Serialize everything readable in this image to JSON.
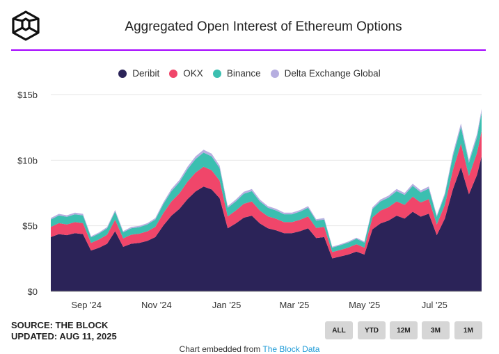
{
  "header": {
    "title": "Aggregated Open Interest of Ethereum Options",
    "logo": "The Block"
  },
  "footer": {
    "source": "SOURCE: THE BLOCK",
    "updated": "UPDATED: AUG 11, 2025",
    "embed_prefix": "Chart embedded from ",
    "embed_link": "The Block Data"
  },
  "range_buttons": [
    "ALL",
    "YTD",
    "12M",
    "3M",
    "1M"
  ],
  "chart_data": {
    "type": "area",
    "stacked": true,
    "title": "Aggregated Open Interest of Ethereum Options",
    "legend_position": "top",
    "grid": true,
    "ylim": [
      0,
      15
    ],
    "yticks": [
      {
        "v": 0,
        "label": "$0"
      },
      {
        "v": 5,
        "label": "$5b"
      },
      {
        "v": 10,
        "label": "$10b"
      },
      {
        "v": 15,
        "label": "$15b"
      }
    ],
    "xticks": [
      {
        "date": "2024-09-01",
        "label": "Sep '24"
      },
      {
        "date": "2024-11-01",
        "label": "Nov '24"
      },
      {
        "date": "2025-01-01",
        "label": "Jan '25"
      },
      {
        "date": "2025-03-01",
        "label": "Mar '25"
      },
      {
        "date": "2025-05-01",
        "label": "May '25"
      },
      {
        "date": "2025-07-01",
        "label": "Jul '25"
      }
    ],
    "x": [
      "2024-08-01",
      "2024-08-08",
      "2024-08-15",
      "2024-08-22",
      "2024-08-29",
      "2024-09-05",
      "2024-09-12",
      "2024-09-19",
      "2024-09-26",
      "2024-10-03",
      "2024-10-10",
      "2024-10-17",
      "2024-10-24",
      "2024-10-31",
      "2024-11-07",
      "2024-11-14",
      "2024-11-21",
      "2024-11-28",
      "2024-12-05",
      "2024-12-12",
      "2024-12-19",
      "2024-12-26",
      "2025-01-02",
      "2025-01-09",
      "2025-01-16",
      "2025-01-23",
      "2025-01-30",
      "2025-02-06",
      "2025-02-13",
      "2025-02-20",
      "2025-02-27",
      "2025-03-06",
      "2025-03-13",
      "2025-03-20",
      "2025-03-27",
      "2025-04-03",
      "2025-04-10",
      "2025-04-17",
      "2025-04-24",
      "2025-05-01",
      "2025-05-08",
      "2025-05-15",
      "2025-05-22",
      "2025-05-29",
      "2025-06-05",
      "2025-06-12",
      "2025-06-19",
      "2025-06-26",
      "2025-07-03",
      "2025-07-10",
      "2025-07-17",
      "2025-07-24",
      "2025-07-31",
      "2025-08-07",
      "2025-08-11"
    ],
    "series": [
      {
        "name": "Deribit",
        "color": "#2b2358",
        "values": [
          4.14,
          4.37,
          4.29,
          4.44,
          4.37,
          3.11,
          3.33,
          3.63,
          4.59,
          3.4,
          3.63,
          3.7,
          3.85,
          4.14,
          5.03,
          5.77,
          6.29,
          7.03,
          7.62,
          7.99,
          7.77,
          7.1,
          4.81,
          5.18,
          5.62,
          5.77,
          5.18,
          4.81,
          4.66,
          4.44,
          4.44,
          4.59,
          4.81,
          4.07,
          4.14,
          2.52,
          2.66,
          2.81,
          3.03,
          2.81,
          4.74,
          5.18,
          5.4,
          5.77,
          5.55,
          6.07,
          5.7,
          5.92,
          4.29,
          5.55,
          7.77,
          9.47,
          7.4,
          8.88,
          10.29
        ]
      },
      {
        "name": "OKX",
        "color": "#f0466a",
        "values": [
          0.78,
          0.83,
          0.81,
          0.84,
          0.83,
          0.59,
          0.63,
          0.69,
          0.87,
          0.64,
          0.69,
          0.7,
          0.73,
          0.78,
          0.95,
          1.09,
          1.19,
          1.33,
          1.44,
          1.51,
          1.47,
          1.34,
          0.91,
          0.98,
          1.06,
          1.09,
          0.98,
          0.91,
          0.88,
          0.84,
          0.84,
          0.87,
          0.91,
          0.77,
          0.78,
          0.48,
          0.5,
          0.53,
          0.57,
          0.53,
          0.9,
          0.98,
          1.02,
          1.09,
          1.05,
          1.15,
          1.08,
          1.12,
          0.81,
          1.05,
          1.47,
          1.79,
          1.4,
          1.68,
          1.95
        ]
      },
      {
        "name": "Binance",
        "color": "#3bbfb0",
        "values": [
          0.56,
          0.59,
          0.58,
          0.6,
          0.59,
          0.42,
          0.45,
          0.49,
          0.62,
          0.46,
          0.49,
          0.5,
          0.52,
          0.56,
          0.68,
          0.78,
          0.85,
          0.95,
          1.03,
          1.08,
          1.05,
          0.96,
          0.65,
          0.7,
          0.76,
          0.78,
          0.7,
          0.65,
          0.63,
          0.6,
          0.6,
          0.62,
          0.65,
          0.55,
          0.56,
          0.34,
          0.36,
          0.38,
          0.41,
          0.38,
          0.64,
          0.7,
          0.73,
          0.78,
          0.75,
          0.82,
          0.77,
          0.8,
          0.58,
          0.75,
          1.05,
          1.28,
          1.0,
          1.2,
          1.39
        ]
      },
      {
        "name": "Delta Exchange Global",
        "color": "#b6aee0",
        "values": [
          0.11,
          0.12,
          0.12,
          0.12,
          0.12,
          0.08,
          0.09,
          0.1,
          0.12,
          0.09,
          0.1,
          0.1,
          0.1,
          0.11,
          0.14,
          0.16,
          0.17,
          0.19,
          0.21,
          0.22,
          0.21,
          0.19,
          0.13,
          0.14,
          0.15,
          0.16,
          0.14,
          0.13,
          0.13,
          0.12,
          0.12,
          0.12,
          0.13,
          0.11,
          0.11,
          0.07,
          0.07,
          0.08,
          0.08,
          0.08,
          0.13,
          0.14,
          0.15,
          0.16,
          0.15,
          0.16,
          0.15,
          0.16,
          0.12,
          0.15,
          0.21,
          0.26,
          0.2,
          0.24,
          0.28
        ]
      }
    ]
  }
}
